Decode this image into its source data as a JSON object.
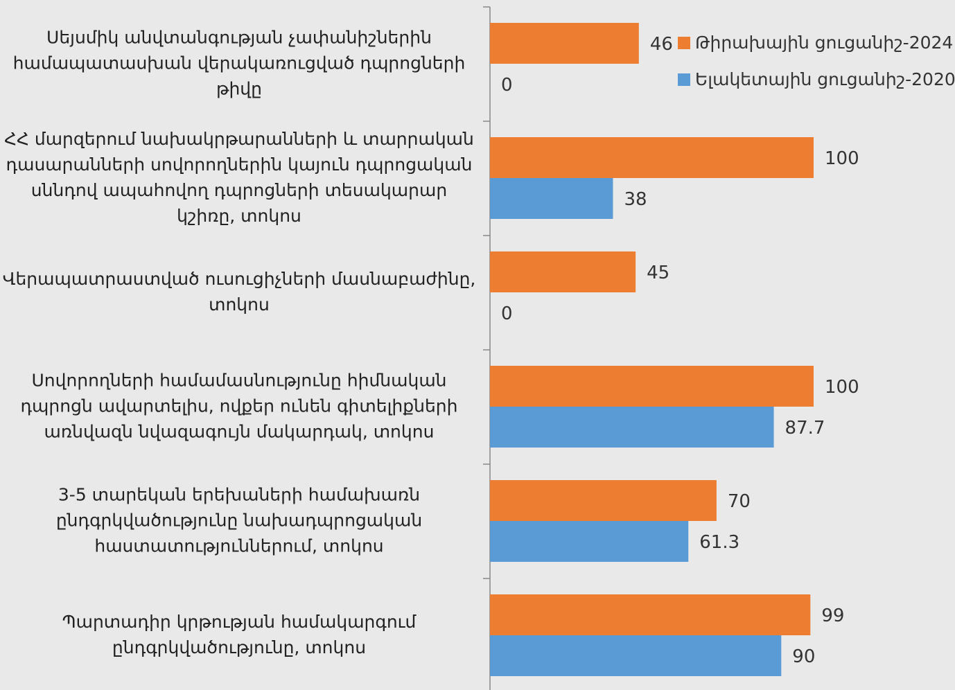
{
  "chart_data": {
    "type": "hbar",
    "categories": [
      "Սեյսմիկ անվտանգության չափանիշներին\nհամապատասխան վերակառուցված դպրոցների\nթիվը",
      "ՀՀ մարզերում նախակրթարանների և տարրական\nդասարանների սովորողներին կայուն դպրոցական\nսննդով ապահովող դպրոցների տեսակարար\nկշիռը, տոկոս",
      "Վերապատրաստված ուսուցիչների մասնաբաժինը,\nտոկոս",
      "Սովորողների համամասնությունը հիմնական\nդպրոցն ավարտելիս, ովքեր ունեն գիտելիքների\nառնվազն նվազագույն մակարդակ, տոկոս",
      "3-5 տարեկան երեխաների համախառն\nընդգրկվածությունը նախադպրոցական\nհաստատություններում, տոկոս",
      "Պարտադիր կրթության համակարգում\nընդգրկվածությունը, տոկոս"
    ],
    "series": [
      {
        "name": "Թիրախային ցուցանիշ-2024",
        "color": "#ed7d31",
        "values": [
          46,
          100,
          45,
          100,
          70,
          99
        ]
      },
      {
        "name": "Ելակետային ցուցանիշ-2020",
        "color": "#5b9bd5",
        "values": [
          0,
          38,
          0,
          87.7,
          61.3,
          90
        ]
      }
    ],
    "xlim": [
      0,
      100
    ],
    "legend": "top-right"
  }
}
